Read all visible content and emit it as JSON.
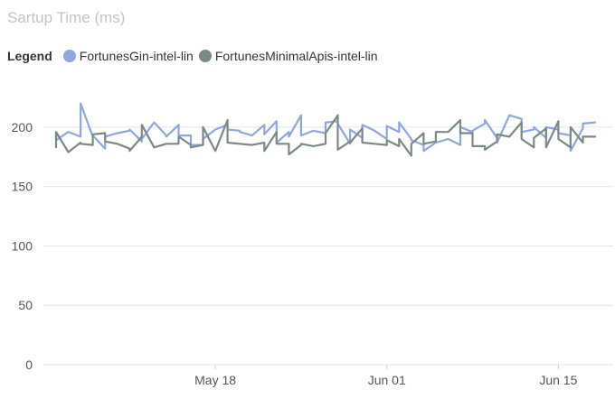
{
  "chart_data": {
    "type": "line",
    "title": "Sartup Time (ms)",
    "legend_title": "Legend",
    "legend_position": "top-left",
    "grid": true,
    "ylim": [
      0,
      225
    ],
    "yticks": [
      0,
      50,
      100,
      150,
      200
    ],
    "xlim": [
      "2024-05-05",
      "2024-06-18"
    ],
    "xticks": [
      {
        "date": "2024-05-18",
        "label": "May 18"
      },
      {
        "date": "2024-06-01",
        "label": "Jun 01"
      },
      {
        "date": "2024-06-15",
        "label": "Jun 15"
      }
    ],
    "x": [
      "2024-05-05",
      "2024-05-05",
      "2024-05-06",
      "2024-05-07",
      "2024-05-07",
      "2024-05-08",
      "2024-05-08",
      "2024-05-09",
      "2024-05-09",
      "2024-05-10",
      "2024-05-11",
      "2024-05-11",
      "2024-05-12",
      "2024-05-12",
      "2024-05-13",
      "2024-05-14",
      "2024-05-14",
      "2024-05-15",
      "2024-05-15",
      "2024-05-16",
      "2024-05-16",
      "2024-05-17",
      "2024-05-17",
      "2024-05-18",
      "2024-05-19",
      "2024-05-19",
      "2024-05-20",
      "2024-05-20",
      "2024-05-21",
      "2024-05-22",
      "2024-05-22",
      "2024-05-23",
      "2024-05-23",
      "2024-05-24",
      "2024-05-24",
      "2024-05-25",
      "2024-05-25",
      "2024-05-26",
      "2024-05-27",
      "2024-05-27",
      "2024-05-28",
      "2024-05-28",
      "2024-05-29",
      "2024-05-29",
      "2024-05-30",
      "2024-05-30",
      "2024-05-31",
      "2024-06-01",
      "2024-06-01",
      "2024-06-02",
      "2024-06-02",
      "2024-06-03",
      "2024-06-03",
      "2024-06-04",
      "2024-06-04",
      "2024-06-05",
      "2024-06-05",
      "2024-06-06",
      "2024-06-07",
      "2024-06-07",
      "2024-06-08",
      "2024-06-08",
      "2024-06-09",
      "2024-06-09",
      "2024-06-10",
      "2024-06-10",
      "2024-06-11",
      "2024-06-12",
      "2024-06-12",
      "2024-06-13",
      "2024-06-13",
      "2024-06-14",
      "2024-06-14",
      "2024-06-15",
      "2024-06-15",
      "2024-06-16",
      "2024-06-16",
      "2024-06-17",
      "2024-06-17",
      "2024-06-18"
    ],
    "series": [
      {
        "name": "FortunesGin-intel-lin",
        "color": "#8fa6e0",
        "values": [
          193,
          189,
          196,
          192,
          220,
          192,
          193,
          182,
          192,
          195,
          197,
          198,
          188,
          190,
          204,
          193,
          192,
          202,
          193,
          193,
          185,
          185,
          190,
          198,
          202,
          198,
          197,
          196,
          193,
          202,
          194,
          205,
          187,
          196,
          192,
          210,
          193,
          197,
          195,
          204,
          205,
          203,
          186,
          198,
          191,
          202,
          197,
          190,
          201,
          196,
          204,
          190,
          189,
          185,
          180,
          187,
          187,
          190,
          185,
          200,
          196,
          197,
          203,
          206,
          191,
          187,
          210,
          207,
          196,
          198,
          200,
          191,
          200,
          198,
          195,
          193,
          180,
          199,
          203,
          204
        ]
      },
      {
        "name": "FortunesMinimalApis-intel-lin",
        "color": "#7c8a86",
        "values": [
          183,
          196,
          179,
          187,
          186,
          185,
          194,
          195,
          188,
          186,
          182,
          180,
          192,
          202,
          183,
          186,
          186,
          186,
          192,
          185,
          183,
          185,
          200,
          180,
          206,
          187,
          186,
          186,
          185,
          187,
          180,
          196,
          186,
          186,
          177,
          185,
          186,
          184,
          186,
          195,
          210,
          181,
          188,
          187,
          199,
          187,
          186,
          185,
          189,
          184,
          190,
          176,
          186,
          195,
          186,
          188,
          196,
          196,
          206,
          195,
          195,
          184,
          184,
          181,
          188,
          194,
          192,
          204,
          190,
          183,
          191,
          199,
          183,
          205,
          190,
          183,
          200,
          187,
          192,
          192
        ]
      }
    ]
  }
}
